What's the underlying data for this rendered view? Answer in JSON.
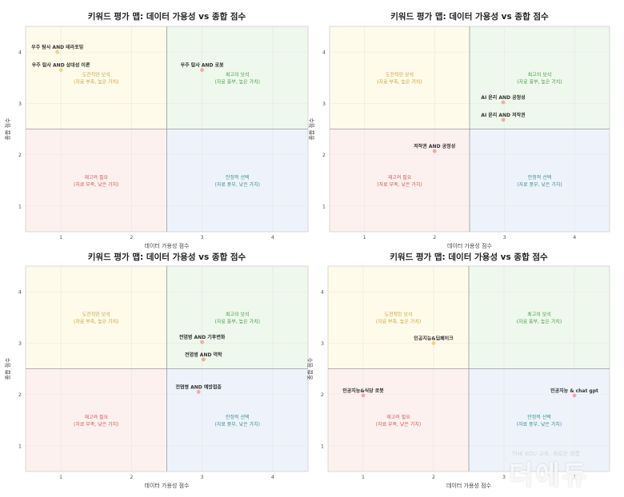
{
  "chart_data": [
    {
      "type": "scatter",
      "title": "키워드 평가 맵: 데이터 가용성 vs 종합 점수",
      "xlabel": "데이터 가용성 점수",
      "ylabel": "종합 점수",
      "xlim": [
        0.5,
        4.5
      ],
      "ylim": [
        0.5,
        4.5
      ],
      "xticks": [
        1,
        2,
        3,
        4
      ],
      "yticks": [
        1,
        2,
        3,
        4
      ],
      "divider": {
        "x": 2.5,
        "y": 2.5
      },
      "quadrants": {
        "top_left": {
          "title": "도전적인 보석",
          "subtitle": "(자료 부족, 높은 가치)"
        },
        "top_right": {
          "title": "최고의 보석",
          "subtitle": "(자료 풍부, 높은 가치)"
        },
        "bottom_left": {
          "title": "재고려 필요",
          "subtitle": "(자료 부족, 낮은 가치)"
        },
        "bottom_right": {
          "title": "안정적 선택",
          "subtitle": "(자료 풍부, 낮은 가치)"
        }
      },
      "points": [
        {
          "label": "우주 탐사 AND 테라포밍",
          "x": 0.95,
          "y": 4.0
        },
        {
          "label": "우주 탐사 AND 상대성 이론",
          "x": 1.0,
          "y": 3.65
        },
        {
          "label": "우주 탐사 AND 로봇",
          "x": 3.0,
          "y": 3.65
        }
      ]
    },
    {
      "type": "scatter",
      "title": "키워드 평가 맵: 데이터 가용성 vs 종합 점수",
      "xlabel": "데이터 가용성 점수",
      "ylabel": "종합 점수",
      "xlim": [
        0.5,
        4.5
      ],
      "ylim": [
        0.5,
        4.5
      ],
      "xticks": [
        1,
        2,
        3,
        4
      ],
      "yticks": [
        1,
        2,
        3,
        4
      ],
      "divider": {
        "x": 2.5,
        "y": 2.5
      },
      "quadrants": {
        "top_left": {
          "title": "도전적인 보석",
          "subtitle": "(자료 부족, 높은 가치)"
        },
        "top_right": {
          "title": "최고의 보석",
          "subtitle": "(자료 풍부, 높은 가치)"
        },
        "bottom_left": {
          "title": "재고려 필요",
          "subtitle": "(자료 부족, 낮은 가치)"
        },
        "bottom_right": {
          "title": "안정적 선택",
          "subtitle": "(자료 풍부, 낮은 가치)"
        }
      },
      "points": [
        {
          "label": "AI 윤리 AND 공정성",
          "x": 2.98,
          "y": 3.02
        },
        {
          "label": "AI 윤리 AND 저작권",
          "x": 2.98,
          "y": 2.68
        },
        {
          "label": "저작권 AND 공정성",
          "x": 2.0,
          "y": 2.07
        }
      ]
    },
    {
      "type": "scatter",
      "title": "키워드 평가 맵: 데이터 가용성 vs 종합 점수",
      "xlabel": "데이터 가용성 점수",
      "ylabel": "종합 점수",
      "xlim": [
        0.5,
        4.5
      ],
      "ylim": [
        0.5,
        4.5
      ],
      "xticks": [
        1,
        2,
        3,
        4
      ],
      "yticks": [
        1,
        2,
        3,
        4
      ],
      "divider": {
        "x": 2.5,
        "y": 2.5
      },
      "quadrants": {
        "top_left": {
          "title": "도전적인 보석",
          "subtitle": "(자료 부족, 높은 가치)"
        },
        "top_right": {
          "title": "최고의 보석",
          "subtitle": "(자료 풍부, 높은 가치)"
        },
        "bottom_left": {
          "title": "재고려 필요",
          "subtitle": "(자료 부족, 낮은 가치)"
        },
        "bottom_right": {
          "title": "안정적 선택",
          "subtitle": "(자료 풍부, 낮은 가치)"
        }
      },
      "points": [
        {
          "label": "전염병 AND 기후변화",
          "x": 3.0,
          "y": 3.02
        },
        {
          "label": "전염병 AND 역학",
          "x": 3.02,
          "y": 2.68
        },
        {
          "label": "전염병 AND 예방접종",
          "x": 2.95,
          "y": 2.05
        }
      ]
    },
    {
      "type": "scatter",
      "title": "키워드 평가 맵: 데이터 가용성 vs 종합 점수",
      "xlabel": "데이터 가용성 점수",
      "ylabel": "종합 점수",
      "xlim": [
        0.5,
        4.5
      ],
      "ylim": [
        0.5,
        4.5
      ],
      "xticks": [
        1,
        2,
        3,
        4
      ],
      "yticks": [
        1,
        2,
        3,
        4
      ],
      "divider": {
        "x": 2.5,
        "y": 2.5
      },
      "quadrants": {
        "top_left": {
          "title": "도전적인 보석",
          "subtitle": "(자료 부족, 높은 가치)"
        },
        "top_right": {
          "title": "최고의 보석",
          "subtitle": "(자료 풍부, 높은 가치)"
        },
        "bottom_left": {
          "title": "재고려 필요",
          "subtitle": "(자료 부족, 낮은 가치)"
        },
        "bottom_right": {
          "title": "안정적 선택",
          "subtitle": "(자료 풍부, 낮은 가치)"
        }
      },
      "points": [
        {
          "label": "인공지능&딥페이크",
          "x": 2.0,
          "y": 3.0
        },
        {
          "label": "인공지능&식당 로봇",
          "x": 1.0,
          "y": 1.98
        },
        {
          "label": "인공지능 & chat gpt",
          "x": 4.0,
          "y": 1.98
        }
      ]
    }
  ],
  "colors": {
    "top_left_bg": "#fffbea",
    "top_left_text": "#c9a23a",
    "top_right_bg": "#eef8ec",
    "top_right_text": "#4a9a4a",
    "bottom_left_bg": "#fdf1f0",
    "bottom_left_text": "#d05a50",
    "bottom_right_bg": "#eef3fb",
    "bottom_right_text": "#3c8d95",
    "point": "#f2a39a",
    "point_yellow": "#e8d27a",
    "divider": "#9a9a9a"
  },
  "watermark": {
    "text": "더에듀",
    "small": "THE EDU 교육, 새로운 흐름"
  }
}
